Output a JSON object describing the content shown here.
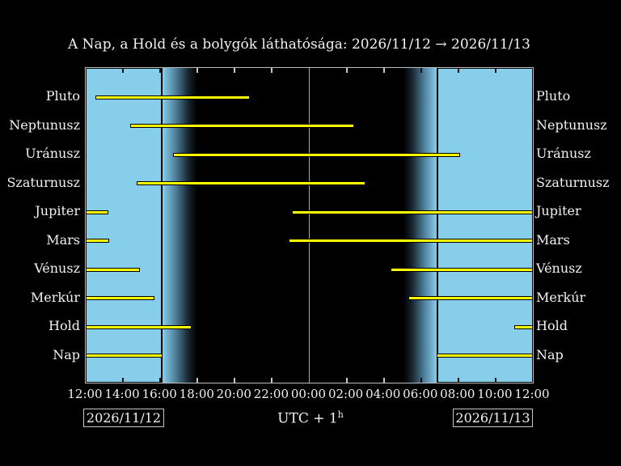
{
  "chart_data": {
    "type": "bar",
    "subtype": "horizontal-visibility-gantt",
    "title": "A Nap, a Hold és a bolygók láthatósága: 2026/11/12 → 2026/11/13",
    "timezone_label": "UTC + 1",
    "timezone_sup": "h",
    "dates": {
      "left": "2026/11/12",
      "right": "2026/11/13"
    },
    "x_axis": {
      "range_hours_after_noon": [
        0,
        24
      ],
      "tick_step_hours": 2,
      "tick_labels": [
        "12:00",
        "14:00",
        "16:00",
        "18:00",
        "20:00",
        "22:00",
        "00:00",
        "02:00",
        "04:00",
        "06:00",
        "08:00",
        "10:00",
        "12:00"
      ]
    },
    "rows": [
      {
        "name": "Pluto",
        "intervals_h": [
          [
            0.5,
            8.8
          ]
        ],
        "times": [
          "12:30–20:50"
        ]
      },
      {
        "name": "Neptunusz",
        "intervals_h": [
          [
            2.4,
            14.4
          ]
        ],
        "times": [
          "14:25–02:25"
        ]
      },
      {
        "name": "Uránusz",
        "intervals_h": [
          [
            4.7,
            20.1
          ]
        ],
        "times": [
          "16:40–08:05"
        ]
      },
      {
        "name": "Szaturnusz",
        "intervals_h": [
          [
            2.75,
            15.0
          ]
        ],
        "times": [
          "14:45–03:00"
        ]
      },
      {
        "name": "Jupiter",
        "intervals_h": [
          [
            0,
            1.2
          ],
          [
            11.05,
            24
          ]
        ],
        "times": [
          "12:00–13:10",
          "23:05–12:00"
        ]
      },
      {
        "name": "Mars",
        "intervals_h": [
          [
            0,
            1.25
          ],
          [
            10.9,
            24
          ]
        ],
        "times": [
          "12:00–13:15",
          "22:55–12:00"
        ]
      },
      {
        "name": "Vénusz",
        "intervals_h": [
          [
            0,
            2.9
          ],
          [
            16.35,
            24
          ]
        ],
        "times": [
          "12:00–14:55",
          "04:20–12:00"
        ]
      },
      {
        "name": "Merkúr",
        "intervals_h": [
          [
            0,
            3.7
          ],
          [
            17.3,
            24
          ]
        ],
        "times": [
          "12:00–15:40",
          "05:20–12:00"
        ]
      },
      {
        "name": "Hold",
        "intervals_h": [
          [
            0,
            5.7
          ],
          [
            23.0,
            24
          ]
        ],
        "times": [
          "12:00–17:40",
          "11:00–12:00"
        ]
      },
      {
        "name": "Nap",
        "intervals_h": [
          [
            0,
            4.13
          ],
          [
            18.85,
            24
          ]
        ],
        "times": [
          "12:00–16:08",
          "06:50–12:00"
        ]
      }
    ],
    "sky": {
      "sunset_h": 4.13,
      "dusk_full_dark_h": 6.0,
      "dawn_start_h": 17.05,
      "sunrise_h": 18.85,
      "midnight_h": 12
    },
    "colors": {
      "background": "#000000",
      "day": "#87ceeb",
      "bar": "#ffff00",
      "bar_outline": "#000000",
      "frame": "#bdbdbd",
      "midnight_line": "#a8a8a8",
      "tick_on_day": "#101010",
      "tick_on_night": "#c8c8c8",
      "text": "#f2f2f2"
    }
  }
}
